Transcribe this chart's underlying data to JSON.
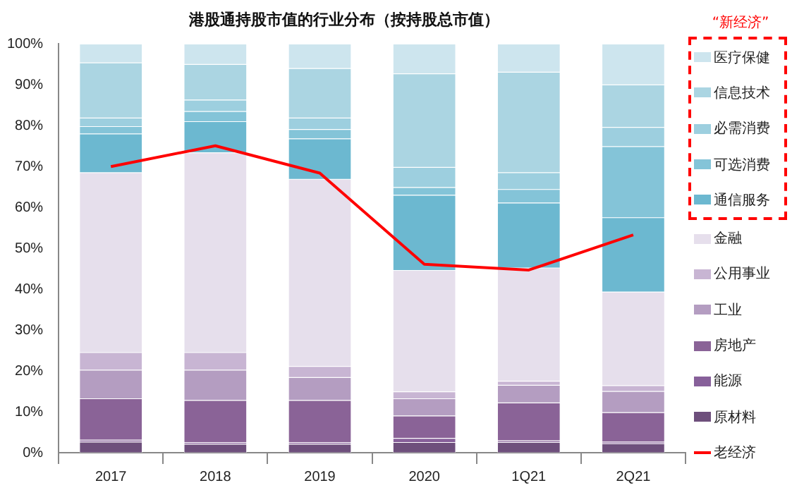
{
  "chart_data": {
    "type": "bar",
    "title": "港股通持股市值的行业分布（按持股总市值）",
    "categories": [
      "2017",
      "2018",
      "2019",
      "2020",
      "1Q21",
      "2Q21"
    ],
    "stacked": true,
    "ylim": [
      0,
      100
    ],
    "yticks": [
      {
        "value": 0,
        "label": "0%"
      },
      {
        "value": 10,
        "label": "10%"
      },
      {
        "value": 20,
        "label": "20%"
      },
      {
        "value": 30,
        "label": "30%"
      },
      {
        "value": 40,
        "label": "40%"
      },
      {
        "value": 50,
        "label": "50%"
      },
      {
        "value": 60,
        "label": "60%"
      },
      {
        "value": 70,
        "label": "70%"
      },
      {
        "value": 80,
        "label": "80%"
      },
      {
        "value": 90,
        "label": "90%"
      },
      {
        "value": 100,
        "label": "100%"
      }
    ],
    "legend": "right",
    "annotations": [
      "“新经济”"
    ],
    "series": [
      {
        "name": "原材料",
        "color": "#6e4f7c",
        "values": [
          2.6,
          2.1,
          2.1,
          2.5,
          2.5,
          2.2
        ]
      },
      {
        "name": "能源",
        "color": "#87609a",
        "values": [
          0.5,
          0.4,
          0.4,
          1.0,
          0.4,
          0.4
        ]
      },
      {
        "name": "房地产",
        "color": "#8a6397",
        "values": [
          10.1,
          10.3,
          10.3,
          5.5,
          9.3,
          7.2
        ]
      },
      {
        "name": "工业",
        "color": "#b49dc1",
        "values": [
          7.0,
          7.4,
          5.6,
          4.2,
          4.3,
          5.2
        ]
      },
      {
        "name": "公用事业",
        "color": "#c8b5d3",
        "values": [
          4.3,
          4.3,
          2.7,
          1.7,
          1.0,
          1.4
        ]
      },
      {
        "name": "金融",
        "color": "#e6dfec",
        "values": [
          44.0,
          48.9,
          45.8,
          29.7,
          27.7,
          22.9
        ]
      },
      {
        "name": "通信服务",
        "color": "#6cb8d0",
        "values": [
          9.5,
          7.6,
          9.9,
          18.4,
          15.9,
          18.2
        ]
      },
      {
        "name": "可选消费",
        "color": "#84c4d8",
        "values": [
          1.8,
          2.5,
          2.3,
          1.9,
          3.3,
          17.4
        ]
      },
      {
        "name": "必需消费",
        "color": "#9dcfdf",
        "values": [
          2.1,
          2.8,
          2.8,
          4.9,
          4.1,
          4.7
        ]
      },
      {
        "name": "信息技术",
        "color": "#abd5e2",
        "values": [
          13.5,
          8.7,
          12.1,
          22.9,
          24.6,
          10.4
        ]
      },
      {
        "name": "医疗保健",
        "color": "#cde5ee",
        "values": [
          4.6,
          5.0,
          6.0,
          7.3,
          6.9,
          10.0
        ]
      },
      {
        "name": "老经济",
        "type": "line",
        "color": "#ff0000",
        "values": [
          70.0,
          75.1,
          68.4,
          46.1,
          44.7,
          53.3
        ]
      }
    ]
  }
}
